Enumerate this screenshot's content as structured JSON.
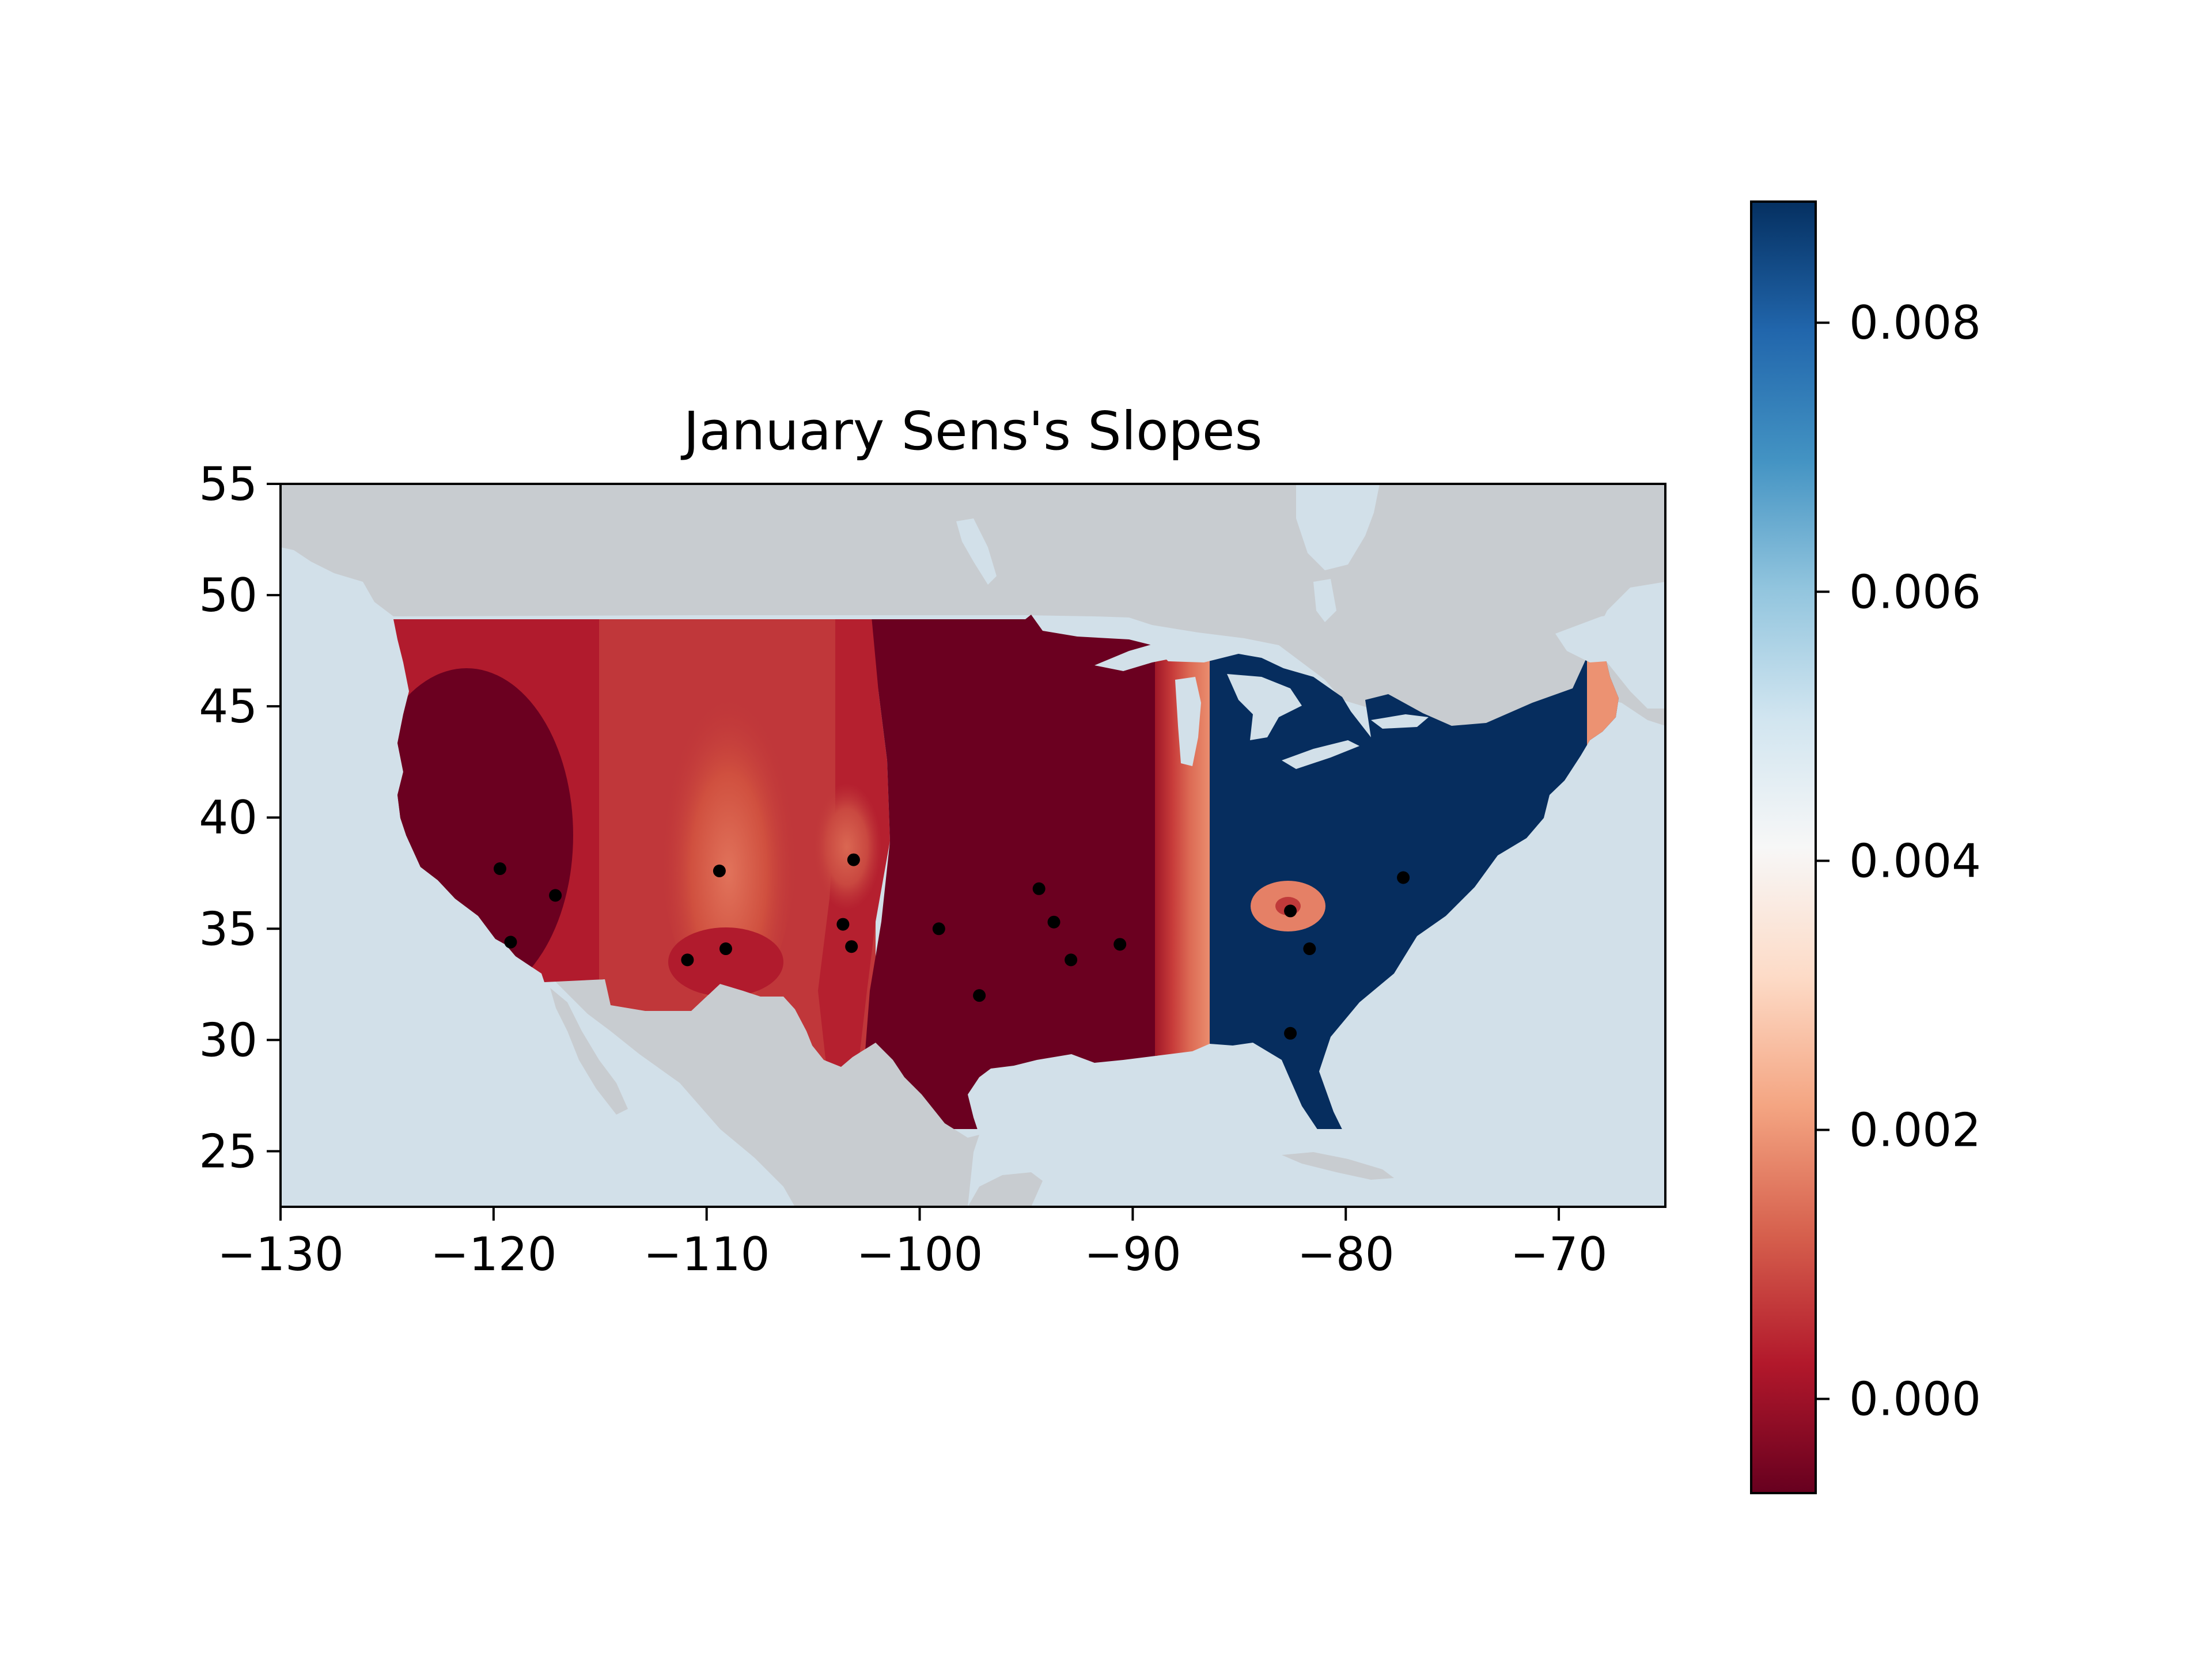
{
  "chart_data": {
    "type": "contour map",
    "title": "January Sens's Slopes",
    "xlabel": "",
    "ylabel": "",
    "xlim": [
      -130,
      -65
    ],
    "ylim": [
      22.5,
      55
    ],
    "x_ticks": [
      -130,
      -120,
      -110,
      -100,
      -90,
      -80,
      -70
    ],
    "x_tick_labels": [
      "−130",
      "−120",
      "−110",
      "−100",
      "−90",
      "−80",
      "−70"
    ],
    "y_ticks": [
      25,
      30,
      35,
      40,
      45,
      50,
      55
    ],
    "y_tick_labels": [
      "25",
      "30",
      "35",
      "40",
      "45",
      "50",
      "55"
    ],
    "grid": false,
    "colormap": "RdBu",
    "colorbar": {
      "vmin": -0.0007,
      "vmax": 0.0089,
      "ticks": [
        0.0,
        0.002,
        0.004,
        0.006,
        0.008
      ],
      "tick_labels": [
        "0.000",
        "0.002",
        "0.004",
        "0.006",
        "0.008"
      ],
      "placement": "right"
    },
    "colors": {
      "ocean": "#d2e0e9",
      "land": "#c8ccd0",
      "dark_red": "#6b0020",
      "red": "#b11b2d",
      "mid_red": "#c8393a",
      "salmon": "#e58066",
      "light_salmon": "#f0a27e",
      "navy": "#062d5e"
    },
    "regions": [
      {
        "name": "coastal-california",
        "value": -0.0006
      },
      {
        "name": "far-west",
        "value": 0.0
      },
      {
        "name": "four-corners",
        "value": 0.0002
      },
      {
        "name": "utah-peak",
        "value": 0.0015
      },
      {
        "name": "colorado-peak",
        "value": 0.0012
      },
      {
        "name": "great-plains",
        "value": -0.0006
      },
      {
        "name": "mississippi-transition",
        "value": 0.0011
      },
      {
        "name": "east",
        "value": 0.0089
      },
      {
        "name": "appalachian-anomaly",
        "value": 0.0016
      },
      {
        "name": "maine-strip",
        "value": 0.0022
      }
    ],
    "stations": [
      {
        "lon": -119.7,
        "lat": 37.7
      },
      {
        "lon": -117.1,
        "lat": 36.5
      },
      {
        "lon": -119.2,
        "lat": 34.4
      },
      {
        "lon": -109.4,
        "lat": 37.6
      },
      {
        "lon": -103.1,
        "lat": 38.1
      },
      {
        "lon": -110.9,
        "lat": 33.6
      },
      {
        "lon": -109.1,
        "lat": 34.1
      },
      {
        "lon": -103.6,
        "lat": 35.2
      },
      {
        "lon": -103.2,
        "lat": 34.2
      },
      {
        "lon": -99.1,
        "lat": 35.0
      },
      {
        "lon": -97.2,
        "lat": 32.0
      },
      {
        "lon": -94.4,
        "lat": 36.8
      },
      {
        "lon": -93.7,
        "lat": 35.3
      },
      {
        "lon": -92.9,
        "lat": 33.6
      },
      {
        "lon": -90.6,
        "lat": 34.3
      },
      {
        "lon": -82.6,
        "lat": 35.8
      },
      {
        "lon": -81.7,
        "lat": 34.1
      },
      {
        "lon": -82.6,
        "lat": 30.3
      },
      {
        "lon": -77.3,
        "lat": 37.3
      }
    ]
  }
}
